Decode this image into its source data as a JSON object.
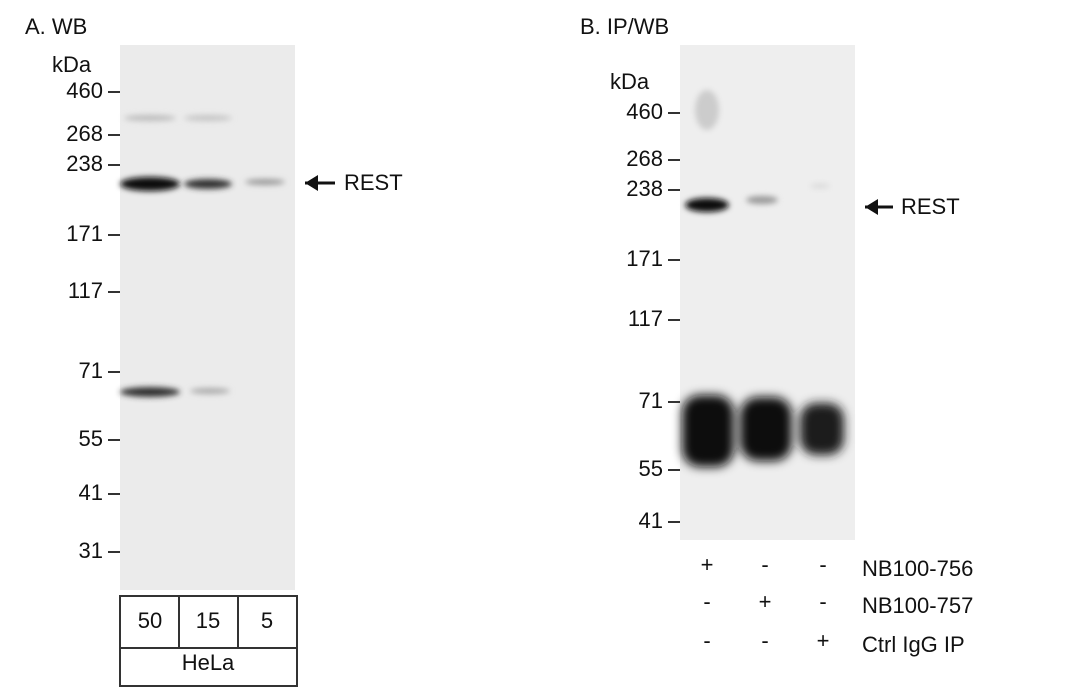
{
  "panel_a": {
    "title": "A. WB",
    "unit": "kDa",
    "markers": [
      "460",
      "268",
      "238",
      "171",
      "117",
      "71",
      "55",
      "41",
      "31"
    ],
    "target": "REST",
    "lanes": [
      "50",
      "15",
      "5"
    ],
    "cell_line": "HeLa"
  },
  "panel_b": {
    "title": "B. IP/WB",
    "unit": "kDa",
    "markers": [
      "460",
      "268",
      "238",
      "171",
      "117",
      "71",
      "55",
      "41"
    ],
    "target": "REST",
    "rows": [
      {
        "label": "NB100-756",
        "signs": [
          "+",
          "-",
          "-"
        ]
      },
      {
        "label": "NB100-757",
        "signs": [
          "-",
          "+",
          "-"
        ]
      },
      {
        "label": "Ctrl IgG IP",
        "signs": [
          "-",
          "-",
          "+"
        ]
      }
    ]
  }
}
